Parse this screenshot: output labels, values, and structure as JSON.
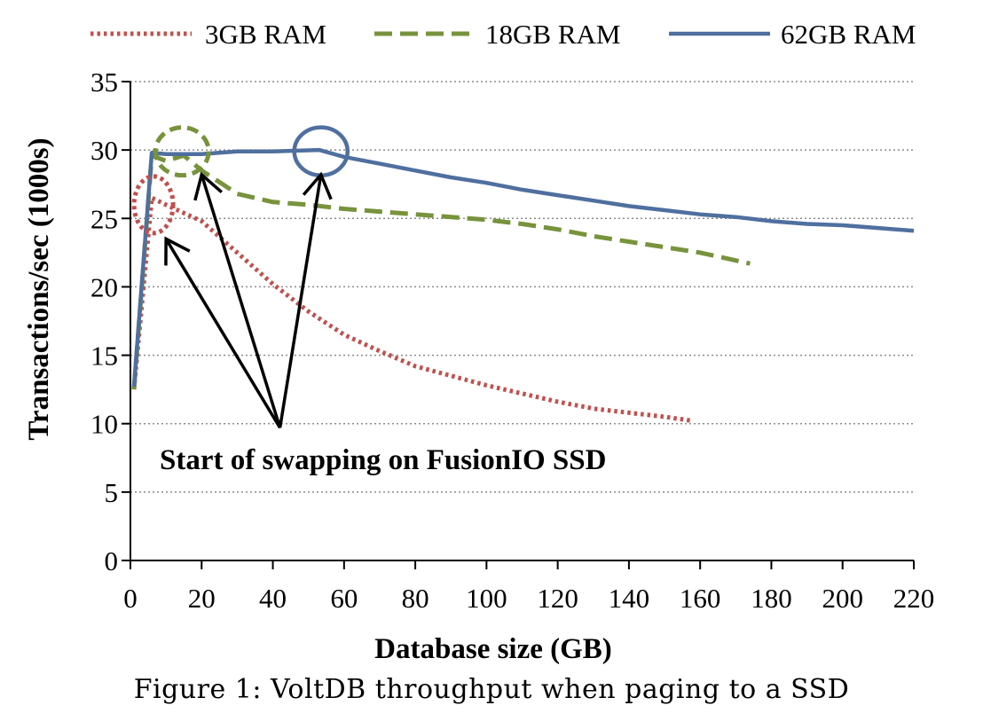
{
  "chart_data": {
    "type": "line",
    "xlabel": "Database size (GB)",
    "ylabel": "Transactions/sec (1000s)",
    "xlim": [
      0,
      220
    ],
    "ylim": [
      0,
      35
    ],
    "xticks": [
      0,
      20,
      40,
      60,
      80,
      100,
      120,
      140,
      160,
      180,
      200,
      220
    ],
    "yticks": [
      0,
      5,
      10,
      15,
      20,
      25,
      30,
      35
    ],
    "grid": "horizontal dotted",
    "legend_position": "top",
    "series": [
      {
        "name": "3GB RAM",
        "color": "#c0504d",
        "style": "dotted",
        "x": [
          1,
          6,
          10,
          20,
          30,
          40,
          50,
          60,
          70,
          80,
          90,
          100,
          110,
          120,
          130,
          140,
          150,
          158
        ],
        "y": [
          12.5,
          26.5,
          26.0,
          24.8,
          22.5,
          20.2,
          18.2,
          16.5,
          15.3,
          14.2,
          13.5,
          12.8,
          12.2,
          11.6,
          11.1,
          10.8,
          10.5,
          10.2
        ]
      },
      {
        "name": "18GB RAM",
        "color": "#77933c",
        "style": "dashed",
        "x": [
          1,
          6,
          10,
          15,
          20,
          30,
          40,
          50,
          60,
          70,
          80,
          90,
          100,
          110,
          120,
          130,
          140,
          150,
          160,
          174
        ],
        "y": [
          12.5,
          29.6,
          29.2,
          29.6,
          28.5,
          26.8,
          26.2,
          26.0,
          25.7,
          25.5,
          25.3,
          25.1,
          24.9,
          24.6,
          24.2,
          23.7,
          23.3,
          22.9,
          22.5,
          21.7
        ]
      },
      {
        "name": "62GB RAM",
        "color": "#4f6f9f",
        "style": "solid",
        "x": [
          1,
          6,
          10,
          20,
          30,
          40,
          53,
          60,
          70,
          80,
          90,
          100,
          110,
          120,
          130,
          140,
          150,
          160,
          170,
          180,
          190,
          200,
          210,
          220
        ],
        "y": [
          12.7,
          29.8,
          29.7,
          29.7,
          29.9,
          29.9,
          30.0,
          29.5,
          29.0,
          28.5,
          28.0,
          27.6,
          27.1,
          26.7,
          26.3,
          25.9,
          25.6,
          25.3,
          25.1,
          24.8,
          24.6,
          24.5,
          24.3,
          24.1
        ]
      }
    ],
    "annotation": {
      "text": "Start of swapping on FusionIO SSD",
      "markers": [
        {
          "series": "3GB RAM",
          "x": 6.5,
          "y": 26.0
        },
        {
          "series": "18GB RAM",
          "x": 14.5,
          "y": 29.9
        },
        {
          "series": "62GB RAM",
          "x": 53.5,
          "y": 29.9
        }
      ],
      "arrow_origin": {
        "x": 42,
        "y": 9.7
      },
      "arrow_tips": [
        {
          "x": 10,
          "y": 23.5
        },
        {
          "x": 20,
          "y": 28.2
        },
        {
          "x": 53.5,
          "y": 28.2
        }
      ]
    }
  },
  "caption": "Figure 1: VoltDB throughput when paging to a SSD"
}
